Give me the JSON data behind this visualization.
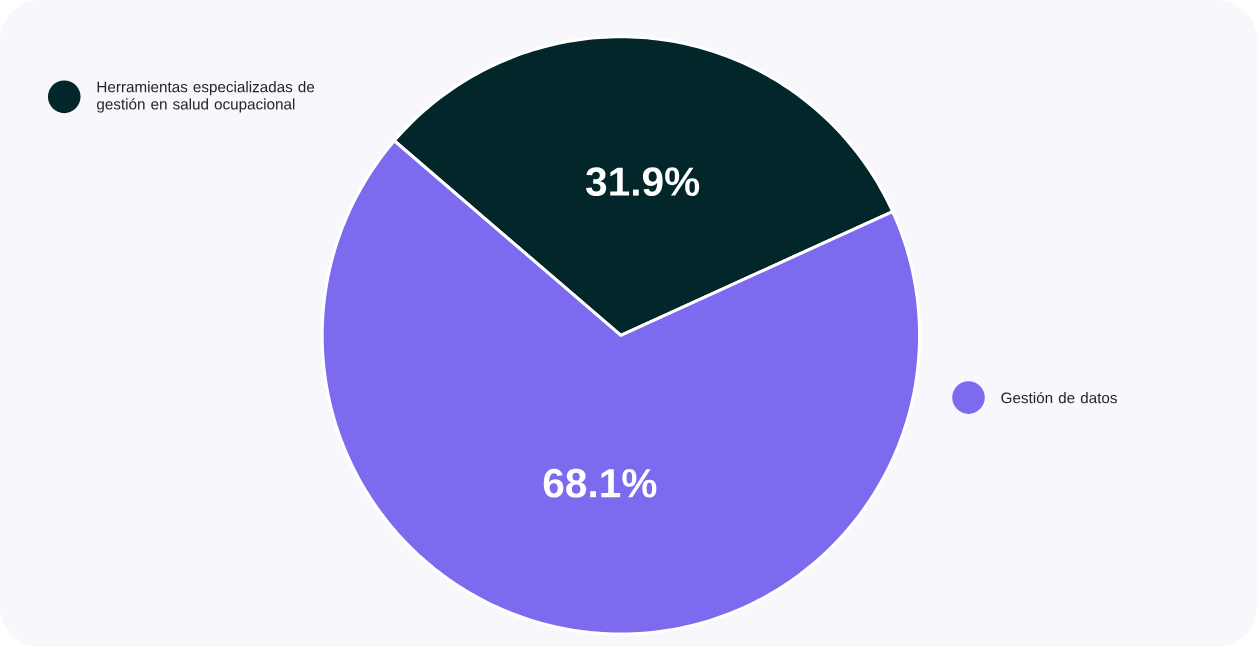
{
  "chart_data": {
    "type": "pie",
    "categories": [
      "Herramientas especializadas de gestión en salud ocupacional",
      "Gestión de datos"
    ],
    "values": [
      31.9,
      68.1
    ],
    "colors": [
      "#022629",
      "#7d6bef"
    ],
    "value_labels": [
      "31.9%",
      "68.1%"
    ],
    "legend": "left"
  }
}
